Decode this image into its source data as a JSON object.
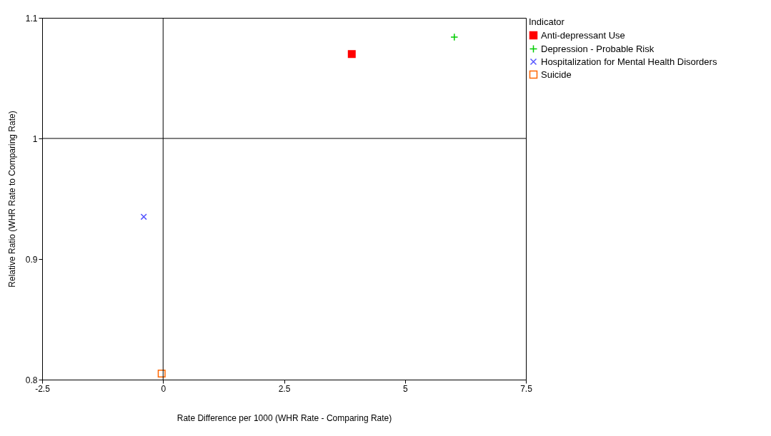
{
  "chart_data": {
    "type": "scatter",
    "xlabel": "Rate Difference per 1000  (WHR Rate - Comparing Rate)",
    "ylabel": "Relative Ratio  (WHR Rate to Comparing Rate)",
    "legend_title": "Indicator",
    "legend": "right",
    "grid": false,
    "xlim": [
      -2.5,
      7.5
    ],
    "xticks": [
      -2.5,
      0,
      2.5,
      5,
      7.5
    ],
    "ylim": [
      0.8,
      1.1
    ],
    "yticks": [
      0.8,
      0.9,
      1,
      1.1
    ],
    "ref_lines": [
      {
        "axis": "x",
        "value": 0,
        "color": "#000000"
      },
      {
        "axis": "y",
        "value": 1,
        "color": "#000000"
      }
    ],
    "series": [
      {
        "name": "Anti-depressant Use",
        "color": "#ff0000",
        "marker": "square",
        "x": [
          3.9
        ],
        "values": [
          1.07
        ]
      },
      {
        "name": "Depression - Probable Risk",
        "color": "#00cc00",
        "marker": "cross",
        "x": [
          6.02
        ],
        "values": [
          1.084
        ]
      },
      {
        "name": "Hospitalization for Mental Health Disorders",
        "color": "#5555ff",
        "marker": "x",
        "x": [
          -0.4
        ],
        "values": [
          0.935
        ]
      },
      {
        "name": "Suicide",
        "color": "#ff6600",
        "marker": "square-open",
        "x": [
          -0.03
        ],
        "values": [
          0.805
        ]
      }
    ]
  }
}
